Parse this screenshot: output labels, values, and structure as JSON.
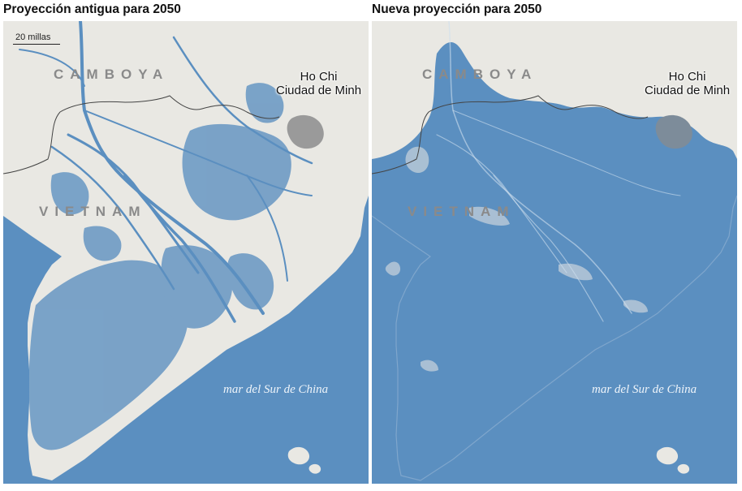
{
  "panels": [
    {
      "title": "Proyección antigua para 2050",
      "scale_label": "20 millas",
      "labels": {
        "cambodia": "CAMBOYA",
        "vietnam": "VIETNAM",
        "hcmc_line1": "Ho Chi",
        "hcmc_line2": "Ciudad de Minh",
        "sea": "mar del Sur de China"
      },
      "flooding_extent": "partial"
    },
    {
      "title": "Nueva proyección para 2050",
      "labels": {
        "cambodia": "CAMBOYA",
        "vietnam": "VIETNAM",
        "hcmc_line1": "Ho Chi",
        "hcmc_line2": "Ciudad de Minh",
        "sea": "mar del Sur de China"
      },
      "flooding_extent": "near-total"
    }
  ],
  "colors": {
    "sea": "#5b8fc0",
    "flood": "#5b8fc0",
    "land": "#e9e8e3",
    "city": "#9a9a9a",
    "border": "#444444"
  }
}
